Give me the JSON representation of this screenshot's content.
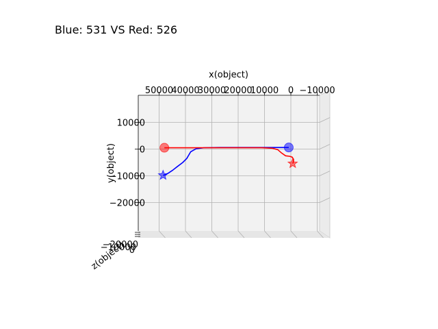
{
  "chart_data": {
    "type": "line",
    "title": "Blue: 531 VS Red: 526",
    "xlabel": "x(object)",
    "ylabel": "y(object)",
    "zlabel": "z(object)",
    "projection": "3d",
    "grid": true,
    "x_ticks": [
      50000,
      40000,
      30000,
      20000,
      10000,
      0,
      -10000
    ],
    "x_tick_labels": [
      "50000",
      "40000",
      "30000",
      "20000",
      "10000",
      "0",
      "−10000"
    ],
    "y_ticks": [
      10000,
      0,
      -10000,
      -20000
    ],
    "y_tick_labels": [
      "10000",
      "0",
      "−10000",
      "−20000"
    ],
    "z_tick_labels": [
      "−20000",
      "−10000",
      "0"
    ],
    "xlim": [
      57000,
      -12000
    ],
    "ylim": [
      -30000,
      20000
    ],
    "series": [
      {
        "color": "#0000ff",
        "x": [
          800,
          3000,
          8000,
          13000,
          20000,
          27000,
          33000,
          36000,
          38000,
          39500,
          41000,
          43000,
          45000,
          46500,
          47500,
          48500
        ],
        "y": [
          600,
          600,
          600,
          600,
          600,
          600,
          500,
          100,
          -1000,
          -3500,
          -5000,
          -6500,
          -8000,
          -9000,
          -9500,
          -9800
        ],
        "start_marker": "circle",
        "end_marker": "star"
      },
      {
        "color": "#ff0000",
        "x": [
          48000,
          40000,
          30000,
          22000,
          16000,
          11000,
          7000,
          5000,
          3500,
          2000,
          500,
          -500,
          -1000,
          -1000,
          -700
        ],
        "y": [
          500,
          500,
          500,
          500,
          500,
          500,
          300,
          -200,
          -1500,
          -2500,
          -2700,
          -3000,
          -3800,
          -4700,
          -5400
        ],
        "start_marker": "circle",
        "end_marker": "star"
      }
    ]
  }
}
